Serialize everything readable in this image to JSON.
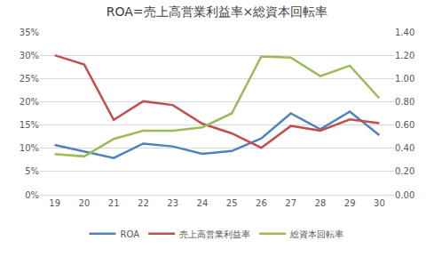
{
  "chart_data": {
    "type": "line",
    "title": "ROA=売上高営業利益率×総資本回転率",
    "categories": [
      "19",
      "20",
      "21",
      "22",
      "23",
      "24",
      "25",
      "26",
      "27",
      "28",
      "29",
      "30"
    ],
    "series": [
      {
        "name": "ROA",
        "color": "#4f81bd",
        "values": [
          10.7,
          9.3,
          7.9,
          11.0,
          10.4,
          8.8,
          9.4,
          12.1,
          17.5,
          14.1,
          17.9,
          12.8
        ]
      },
      {
        "name": "売上高営業利益率",
        "color": "#c0504d",
        "values": [
          30.0,
          28.0,
          16.1,
          20.1,
          19.3,
          15.3,
          13.2,
          10.1,
          14.8,
          13.8,
          16.2,
          15.4
        ]
      },
      {
        "name": "総資本回転率",
        "color": "#9bbb59",
        "axis": "y2",
        "values": [
          0.35,
          0.33,
          0.48,
          0.55,
          0.55,
          0.58,
          0.7,
          1.19,
          1.18,
          1.02,
          1.11,
          0.83
        ]
      }
    ],
    "ylim": [
      0,
      35
    ],
    "yticks": [
      {
        "value": 0,
        "label": "0%"
      },
      {
        "value": 5,
        "label": "5%"
      },
      {
        "value": 10,
        "label": "10%"
      },
      {
        "value": 15,
        "label": "15%"
      },
      {
        "value": 20,
        "label": "20%"
      },
      {
        "value": 25,
        "label": "25%"
      },
      {
        "value": 30,
        "label": "30%"
      },
      {
        "value": 35,
        "label": "35%"
      }
    ],
    "y2lim": [
      0,
      1.4
    ],
    "y2ticks": [
      {
        "value": 0,
        "label": "0.00"
      },
      {
        "value": 0.2,
        "label": "0.20"
      },
      {
        "value": 0.4,
        "label": "0.40"
      },
      {
        "value": 0.6,
        "label": "0.60"
      },
      {
        "value": 0.8,
        "label": "0.80"
      },
      {
        "value": 1.0,
        "label": "1.00"
      },
      {
        "value": 1.2,
        "label": "1.20"
      },
      {
        "value": 1.4,
        "label": "1.40"
      }
    ],
    "grid": true,
    "legend": "bottom"
  }
}
